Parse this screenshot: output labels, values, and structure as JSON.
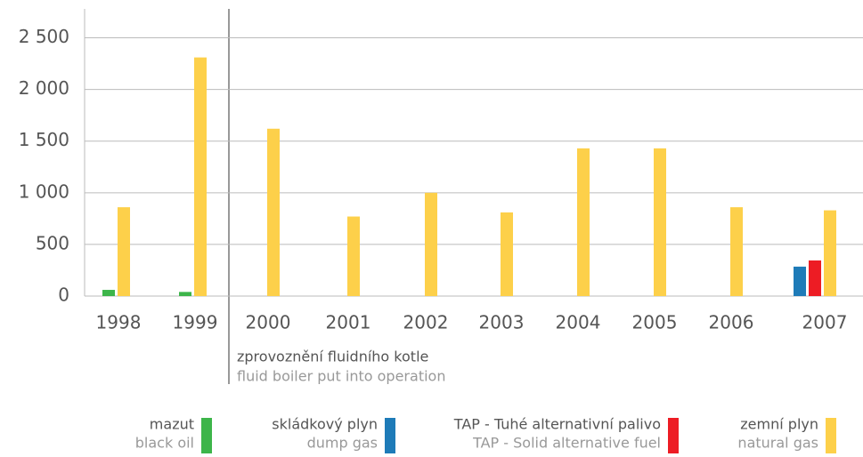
{
  "chart_data": {
    "type": "bar",
    "categories": [
      "1998",
      "1999",
      "2000",
      "2001",
      "2002",
      "2003",
      "2004",
      "2005",
      "2006",
      "2007"
    ],
    "series": [
      {
        "name": "mazut",
        "name_en": "black oil",
        "color": "#3db54a",
        "values": [
          60,
          40,
          0,
          0,
          0,
          0,
          0,
          0,
          0,
          0
        ]
      },
      {
        "name": "skládkový plyn",
        "name_en": "dump gas",
        "color": "#1e7bb8",
        "values": [
          0,
          0,
          0,
          0,
          0,
          0,
          0,
          0,
          0,
          285
        ]
      },
      {
        "name": "TAP - Tuhé alternativní palivo",
        "name_en": "TAP - Solid alternative fuel",
        "color": "#ed1c24",
        "values": [
          0,
          0,
          0,
          0,
          0,
          0,
          0,
          0,
          0,
          345
        ]
      },
      {
        "name": "zemní plyn",
        "name_en": "natural gas",
        "color": "#fdd04a",
        "values": [
          860,
          2310,
          1620,
          770,
          1000,
          810,
          1430,
          1430,
          860,
          830
        ]
      }
    ],
    "ylim": [
      0,
      2780
    ],
    "yticks": [
      0,
      500,
      {
        "value": 1000,
        "label": "1 000"
      },
      {
        "value": 1500,
        "label": "1 500"
      },
      {
        "value": 2000,
        "label": "2 000"
      },
      {
        "value": 2500,
        "label": "2 500"
      }
    ],
    "grid": true,
    "annotation": {
      "title": "zprovoznění fluidního kotle",
      "subtitle": "fluid boiler put into operation"
    },
    "legend": "bottom"
  }
}
